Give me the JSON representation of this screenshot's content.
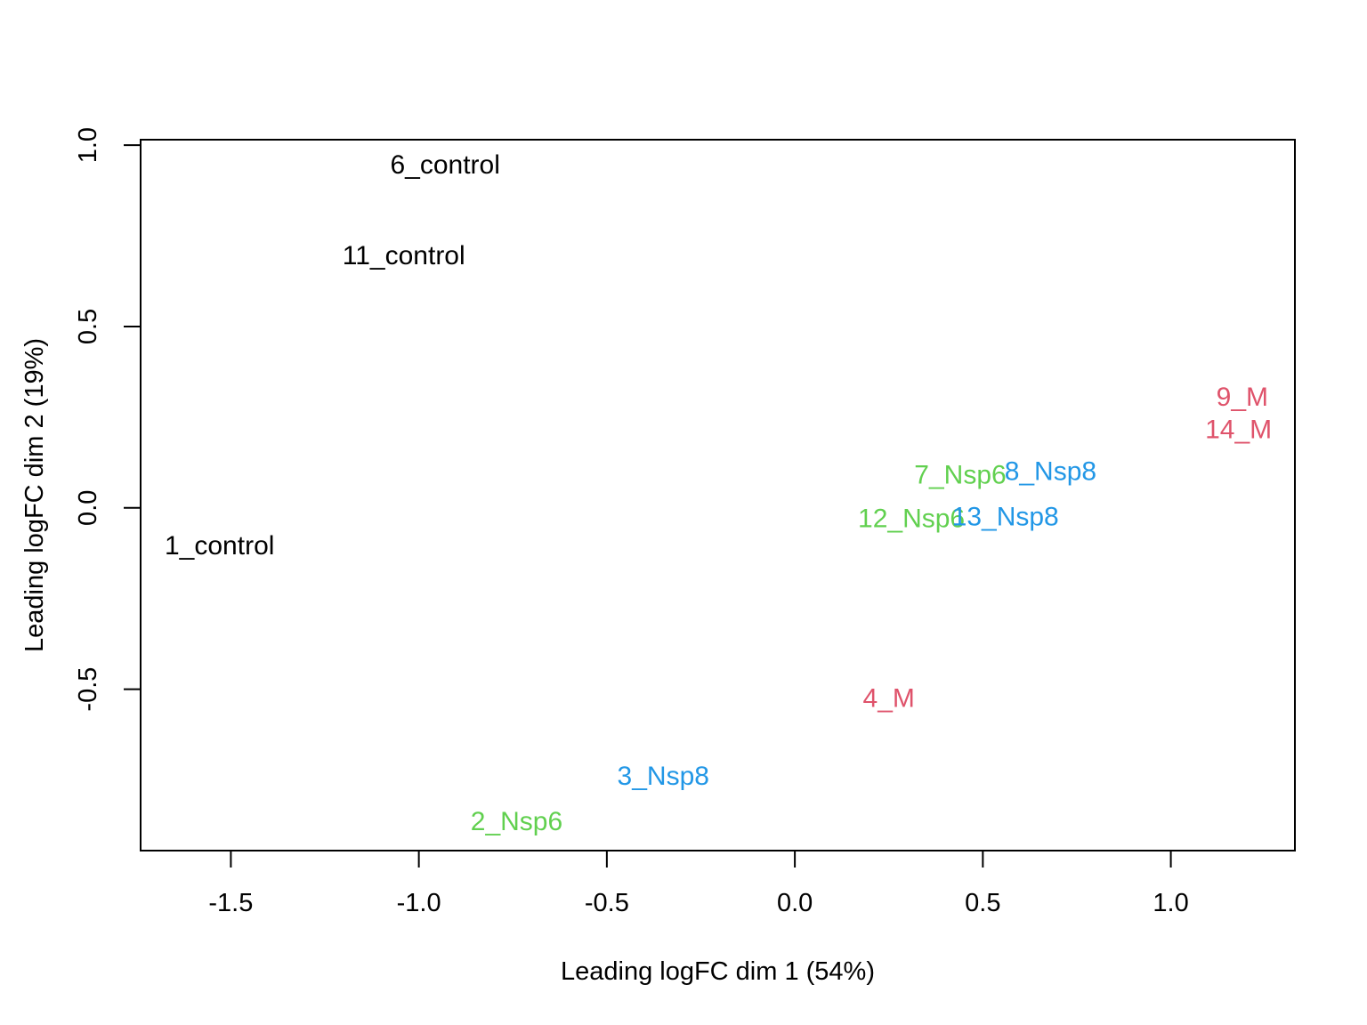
{
  "chart_data": {
    "type": "scatter",
    "title": "",
    "xlabel": "Leading logFC dim 1 (54%)",
    "ylabel": "Leading logFC dim 2 (19%)",
    "xlim": [
      -1.74,
      1.33
    ],
    "ylim": [
      -0.945,
      1.015
    ],
    "x_ticks": [
      {
        "value": -1.5,
        "label": "-1.5"
      },
      {
        "value": -1.0,
        "label": "-1.0"
      },
      {
        "value": -0.5,
        "label": "-0.5"
      },
      {
        "value": 0.0,
        "label": "0.0"
      },
      {
        "value": 0.5,
        "label": "0.5"
      },
      {
        "value": 1.0,
        "label": "1.0"
      }
    ],
    "y_ticks": [
      {
        "value": -0.5,
        "label": "-0.5"
      },
      {
        "value": 0.0,
        "label": "0.0"
      },
      {
        "value": 0.5,
        "label": "0.5"
      },
      {
        "value": 1.0,
        "label": "1.0"
      }
    ],
    "grid": false,
    "legend": "none",
    "group_colors": {
      "control": "#000000",
      "Nsp6": "#61d04f",
      "Nsp8": "#2297e6",
      "M": "#df536b"
    },
    "points": [
      {
        "label": "6_control",
        "group": "control",
        "x": -0.93,
        "y": 0.945
      },
      {
        "label": "11_control",
        "group": "control",
        "x": -1.04,
        "y": 0.695
      },
      {
        "label": "1_control",
        "group": "control",
        "x": -1.53,
        "y": -0.105
      },
      {
        "label": "9_M",
        "group": "M",
        "x": 1.19,
        "y": 0.305
      },
      {
        "label": "14_M",
        "group": "M",
        "x": 1.18,
        "y": 0.215
      },
      {
        "label": "4_M",
        "group": "M",
        "x": 0.25,
        "y": -0.525
      },
      {
        "label": "7_Nsp6",
        "group": "Nsp6",
        "x": 0.44,
        "y": 0.09
      },
      {
        "label": "8_Nsp8",
        "group": "Nsp8",
        "x": 0.68,
        "y": 0.1
      },
      {
        "label": "12_Nsp6",
        "group": "Nsp6",
        "x": 0.31,
        "y": -0.03
      },
      {
        "label": "13_Nsp8",
        "group": "Nsp8",
        "x": 0.56,
        "y": -0.025
      },
      {
        "label": "3_Nsp8",
        "group": "Nsp8",
        "x": -0.35,
        "y": -0.74
      },
      {
        "label": "2_Nsp6",
        "group": "Nsp6",
        "x": -0.74,
        "y": -0.865
      }
    ]
  }
}
